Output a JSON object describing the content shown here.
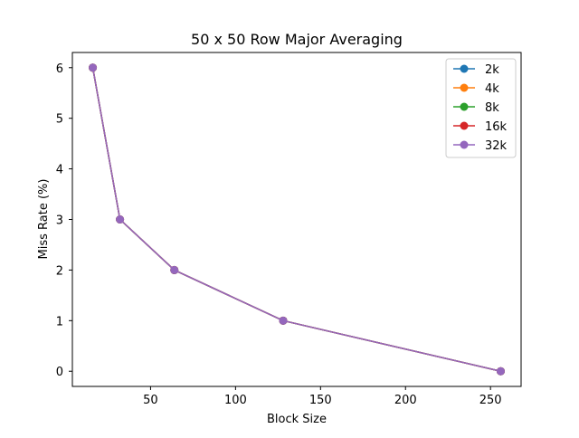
{
  "chart_data": {
    "type": "line",
    "title": "50 x 50 Row Major Averaging",
    "xlabel": "Block Size",
    "ylabel": "Miss Rate (%)",
    "xlim": [
      4,
      268
    ],
    "ylim": [
      -0.3,
      6.3
    ],
    "xticks": [
      50,
      100,
      150,
      200,
      250
    ],
    "xtick_labels": [
      "50",
      "100",
      "150",
      "200",
      "250"
    ],
    "yticks": [
      0,
      1,
      2,
      3,
      4,
      5,
      6
    ],
    "ytick_labels": [
      "0",
      "1",
      "2",
      "3",
      "4",
      "5",
      "6"
    ],
    "grid": false,
    "legend_position": "top-right",
    "x": [
      16,
      32,
      64,
      128,
      256
    ],
    "series": [
      {
        "name": "2k",
        "color": "#1f77b4",
        "values": [
          6,
          3,
          2,
          1,
          0
        ]
      },
      {
        "name": "4k",
        "color": "#ff7f0e",
        "values": [
          6,
          3,
          2,
          1,
          0
        ]
      },
      {
        "name": "8k",
        "color": "#2ca02c",
        "values": [
          6,
          3,
          2,
          1,
          0
        ]
      },
      {
        "name": "16k",
        "color": "#d62728",
        "values": [
          6,
          3,
          2,
          1,
          0
        ]
      },
      {
        "name": "32k",
        "color": "#9467bd",
        "values": [
          6,
          3,
          2,
          1,
          0
        ]
      }
    ]
  }
}
